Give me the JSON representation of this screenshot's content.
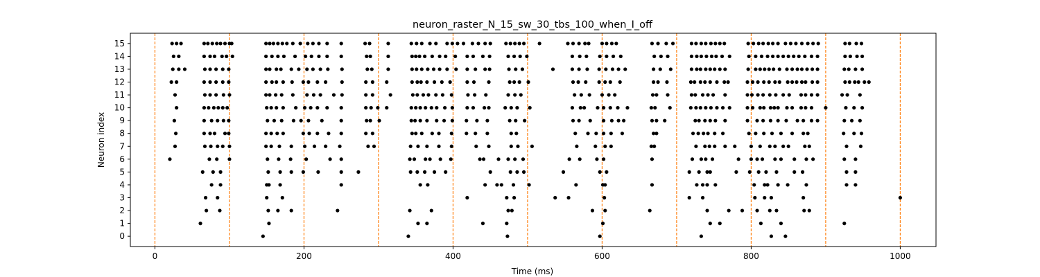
{
  "chart_data": {
    "type": "scatter",
    "title": "neuron_raster_N_15_sw_30_tbs_100_when_I_off",
    "xlabel": "Time (ms)",
    "ylabel": "Neuron index",
    "xlim": [
      -33,
      1048
    ],
    "ylim": [
      -0.8,
      15.8
    ],
    "x_ticks": [
      0,
      200,
      400,
      600,
      800,
      1000
    ],
    "x_tick_labels": [
      "0",
      "200",
      "400",
      "600",
      "800",
      "1000"
    ],
    "y_ticks": [
      0,
      1,
      2,
      3,
      4,
      5,
      6,
      7,
      8,
      9,
      10,
      11,
      12,
      13,
      14,
      15
    ],
    "y_tick_labels": [
      "0",
      "1",
      "2",
      "3",
      "4",
      "5",
      "6",
      "7",
      "8",
      "9",
      "10",
      "11",
      "12",
      "13",
      "14",
      "15"
    ],
    "grid": false,
    "spike_color": "#000000",
    "marker_color": "#ff7f0e",
    "vlines": [
      0,
      100,
      200,
      300,
      400,
      500,
      600,
      700,
      800,
      900,
      1000
    ],
    "spikes": [
      {
        "neuron": 0,
        "times": [
          145,
          340,
          473,
          597,
          733,
          827,
          846
        ]
      },
      {
        "neuron": 1,
        "times": [
          61,
          153,
          353,
          365,
          440,
          472,
          601,
          745,
          758,
          813,
          840,
          925
        ]
      },
      {
        "neuron": 2,
        "times": [
          69,
          87,
          152,
          165,
          183,
          245,
          342,
          371,
          474,
          479,
          587,
          604,
          664,
          741,
          770,
          788,
          808,
          825,
          834,
          871,
          878
        ]
      },
      {
        "neuron": 3,
        "times": [
          68,
          84,
          150,
          171,
          419,
          472,
          482,
          537,
          555,
          603,
          717,
          735,
          805,
          818,
          827,
          870,
          1000
        ]
      },
      {
        "neuron": 4,
        "times": [
          76,
          88,
          150,
          153,
          168,
          250,
          356,
          366,
          443,
          459,
          465,
          481,
          502,
          565,
          601,
          604,
          667,
          727,
          735,
          741,
          752,
          804,
          818,
          822,
          836,
          849,
          874,
          928,
          940
        ]
      },
      {
        "neuron": 5,
        "times": [
          64,
          78,
          88,
          152,
          168,
          183,
          199,
          219,
          250,
          273,
          343,
          352,
          362,
          375,
          390,
          450,
          477,
          486,
          495,
          548,
          597,
          606,
          717,
          730,
          741,
          745,
          780,
          798,
          810,
          820,
          834,
          858,
          869,
          928,
          940
        ]
      },
      {
        "neuron": 6,
        "times": [
          20,
          73,
          83,
          100,
          151,
          166,
          182,
          203,
          235,
          250,
          342,
          348,
          363,
          369,
          383,
          397,
          436,
          441,
          461,
          474,
          483,
          494,
          556,
          570,
          593,
          602,
          667,
          721,
          733,
          739,
          748,
          783,
          800,
          808,
          815,
          832,
          840,
          858,
          874,
          883,
          925,
          940
        ]
      },
      {
        "neuron": 7,
        "times": [
          27,
          67,
          75,
          84,
          91,
          100,
          149,
          156,
          167,
          183,
          201,
          214,
          229,
          248,
          286,
          294,
          343,
          353,
          365,
          381,
          398,
          431,
          448,
          478,
          487,
          506,
          566,
          591,
          604,
          612,
          666,
          670,
          726,
          738,
          744,
          751,
          765,
          778,
          800,
          812,
          825,
          832,
          843,
          850,
          872,
          878,
          928,
          947
        ]
      },
      {
        "neuron": 8,
        "times": [
          28,
          66,
          74,
          80,
          94,
          99,
          149,
          156,
          164,
          172,
          199,
          207,
          218,
          233,
          250,
          283,
          292,
          345,
          350,
          358,
          372,
          381,
          398,
          418,
          430,
          446,
          478,
          485,
          564,
          581,
          592,
          602,
          612,
          627,
          669,
          673,
          722,
          729,
          736,
          742,
          751,
          762,
          797,
          806,
          817,
          828,
          840,
          855,
          870,
          876,
          924,
          938,
          948
        ]
      },
      {
        "neuron": 9,
        "times": [
          26,
          66,
          76,
          84,
          92,
          99,
          151,
          160,
          170,
          186,
          196,
          206,
          224,
          250,
          284,
          289,
          301,
          344,
          349,
          356,
          365,
          378,
          388,
          399,
          418,
          432,
          446,
          476,
          484,
          496,
          561,
          569,
          584,
          602,
          613,
          622,
          629,
          667,
          673,
          684,
          725,
          730,
          738,
          745,
          752,
          765,
          795,
          808,
          816,
          826,
          836,
          847,
          862,
          870,
          881,
          889,
          925,
          935,
          946
        ]
      },
      {
        "neuron": 10,
        "times": [
          29,
          66,
          72,
          79,
          85,
          91,
          97,
          150,
          156,
          163,
          172,
          189,
          201,
          209,
          218,
          231,
          250,
          283,
          290,
          299,
          311,
          344,
          350,
          356,
          363,
          371,
          378,
          389,
          399,
          419,
          427,
          442,
          448,
          470,
          478,
          486,
          503,
          560,
          571,
          576,
          594,
          602,
          611,
          621,
          634,
          666,
          671,
          691,
          719,
          726,
          732,
          739,
          746,
          754,
          762,
          771,
          795,
          802,
          812,
          817,
          826,
          831,
          836,
          848,
          855,
          867,
          873,
          881,
          900,
          927,
          938,
          949
        ]
      },
      {
        "neuron": 11,
        "times": [
          27,
          67,
          74,
          82,
          92,
          100,
          149,
          154,
          162,
          170,
          185,
          204,
          213,
          222,
          240,
          251,
          283,
          292,
          316,
          346,
          352,
          360,
          367,
          377,
          386,
          398,
          420,
          429,
          444,
          474,
          483,
          491,
          563,
          572,
          583,
          600,
          609,
          617,
          668,
          673,
          688,
          720,
          725,
          735,
          742,
          749,
          765,
          795,
          801,
          809,
          816,
          825,
          833,
          843,
          851,
          867,
          873,
          881,
          889,
          922,
          929,
          946
        ]
      },
      {
        "neuron": 12,
        "times": [
          22,
          29,
          66,
          74,
          82,
          91,
          99,
          149,
          157,
          163,
          172,
          184,
          199,
          206,
          218,
          229,
          251,
          283,
          292,
          311,
          345,
          352,
          357,
          365,
          375,
          385,
          396,
          419,
          428,
          448,
          476,
          482,
          489,
          501,
          561,
          568,
          578,
          596,
          604,
          611,
          624,
          669,
          675,
          687,
          719,
          724,
          732,
          738,
          745,
          754,
          764,
          769,
          795,
          802,
          809,
          817,
          824,
          832,
          838,
          849,
          855,
          861,
          868,
          873,
          882,
          889,
          926,
          932,
          939,
          944,
          952,
          958
        ]
      },
      {
        "neuron": 13,
        "times": [
          24,
          32,
          40,
          67,
          74,
          82,
          91,
          99,
          149,
          154,
          163,
          169,
          183,
          193,
          204,
          212,
          222,
          232,
          251,
          285,
          291,
          313,
          345,
          351,
          358,
          366,
          374,
          382,
          392,
          404,
          419,
          430,
          443,
          449,
          475,
          484,
          493,
          534,
          560,
          569,
          580,
          596,
          605,
          614,
          622,
          631,
          669,
          678,
          692,
          720,
          727,
          732,
          739,
          745,
          751,
          758,
          765,
          796,
          806,
          812,
          818,
          824,
          830,
          838,
          848,
          855,
          862,
          868,
          875,
          882,
          889,
          925,
          931,
          940,
          949
        ]
      },
      {
        "neuron": 14,
        "times": [
          25,
          32,
          66,
          74,
          80,
          90,
          96,
          104,
          149,
          157,
          165,
          173,
          188,
          202,
          210,
          220,
          231,
          250,
          284,
          289,
          313,
          345,
          350,
          355,
          362,
          372,
          382,
          390,
          403,
          419,
          427,
          440,
          449,
          474,
          482,
          490,
          499,
          560,
          570,
          579,
          597,
          606,
          615,
          625,
          670,
          679,
          688,
          720,
          727,
          733,
          740,
          747,
          753,
          761,
          771,
          797,
          806,
          814,
          822,
          829,
          836,
          843,
          850,
          857,
          864,
          872,
          881,
          889,
          926,
          933,
          942,
          949
        ]
      },
      {
        "neuron": 15,
        "times": [
          23,
          29,
          35,
          66,
          71,
          77,
          83,
          88,
          94,
          100,
          103,
          149,
          154,
          159,
          165,
          171,
          177,
          185,
          195,
          205,
          212,
          220,
          231,
          250,
          282,
          288,
          313,
          344,
          351,
          358,
          369,
          377,
          392,
          399,
          406,
          414,
          426,
          434,
          443,
          450,
          471,
          477,
          483,
          489,
          495,
          516,
          554,
          561,
          569,
          577,
          582,
          600,
          606,
          613,
          619,
          667,
          675,
          686,
          695,
          720,
          726,
          733,
          739,
          746,
          752,
          758,
          764,
          796,
          803,
          810,
          816,
          823,
          829,
          836,
          846,
          853,
          860,
          868,
          876,
          883,
          890,
          926,
          932,
          941,
          948
        ]
      }
    ]
  }
}
